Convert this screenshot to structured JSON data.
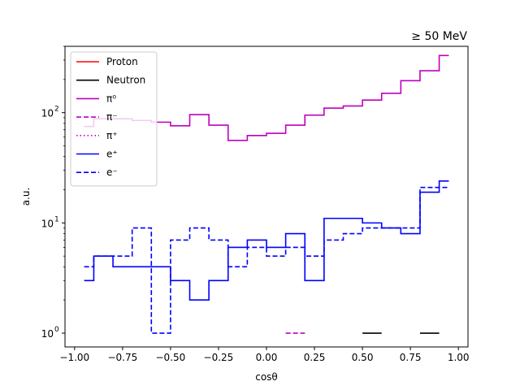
{
  "chart_data": {
    "type": "line",
    "step": true,
    "title": "",
    "corner_title": "≥ 50 MeV",
    "xlabel": "cosθ",
    "ylabel": "a.u.",
    "xlim": [
      -1.05,
      1.05
    ],
    "ylim": [
      0.75,
      400
    ],
    "yscale": "log",
    "grid": false,
    "legend_position": "upper-left",
    "x_ticks": [
      -1.0,
      -0.75,
      -0.5,
      -0.25,
      0.0,
      0.25,
      0.5,
      0.75,
      1.0
    ],
    "x_tick_labels": [
      "−1.00",
      "−0.75",
      "−0.50",
      "−0.25",
      "0.00",
      "0.25",
      "0.50",
      "0.75",
      "1.00"
    ],
    "y_ticks": [
      1,
      10,
      100
    ],
    "y_tick_labels": [
      "10",
      "10",
      "10"
    ],
    "y_tick_exponents": [
      "0",
      "1",
      "2"
    ],
    "bin_edges": [
      -0.95,
      -0.9,
      -0.8,
      -0.7,
      -0.6,
      -0.5,
      -0.4,
      -0.3,
      -0.2,
      -0.1,
      0.0,
      0.1,
      0.2,
      0.3,
      0.4,
      0.5,
      0.6,
      0.7,
      0.8,
      0.9,
      0.95
    ],
    "series": [
      {
        "name": "Proton",
        "color": "#ff0000",
        "dash": "solid",
        "values": [
          0,
          0,
          0,
          0,
          0,
          0,
          0,
          0,
          0,
          0,
          0,
          0,
          0,
          0,
          0,
          0,
          0,
          0,
          0,
          0
        ]
      },
      {
        "name": "Neutron",
        "color": "#000000",
        "dash": "solid",
        "values": [
          0,
          0,
          0,
          0,
          0,
          0,
          0,
          0,
          0,
          0,
          0,
          0,
          0,
          0,
          0,
          1,
          0,
          0,
          1,
          0
        ]
      },
      {
        "name": "π⁰",
        "color": "#bf00bf",
        "dash": "solid",
        "values": [
          75,
          88,
          88,
          85,
          82,
          76,
          96,
          77,
          56,
          62,
          65,
          77,
          95,
          110,
          115,
          130,
          150,
          195,
          240,
          330
        ]
      },
      {
        "name": "π⁻",
        "color": "#bf00bf",
        "dash": "dashed",
        "values": [
          0,
          0,
          0,
          0,
          0,
          0,
          0,
          0,
          0,
          0,
          0,
          1,
          0,
          0,
          0,
          0,
          0,
          0,
          0,
          0
        ]
      },
      {
        "name": "π⁺",
        "color": "#bf00bf",
        "dash": "dotted",
        "values": [
          0,
          0,
          0,
          0,
          0,
          0,
          0,
          0,
          0,
          0,
          0,
          0,
          0,
          0,
          0,
          0,
          0,
          0,
          0,
          0
        ]
      },
      {
        "name": "e⁺",
        "color": "#0000ff",
        "dash": "solid",
        "values": [
          3,
          5,
          4,
          4,
          4,
          3,
          2,
          3,
          6,
          7,
          6,
          8,
          3,
          11,
          11,
          10,
          9,
          8,
          19,
          24
        ]
      },
      {
        "name": "e⁻",
        "color": "#0000ff",
        "dash": "dashed",
        "values": [
          4,
          5,
          5,
          9,
          1,
          7,
          9,
          7,
          4,
          6,
          5,
          6,
          5,
          7,
          8,
          9,
          9,
          9,
          21,
          21
        ]
      }
    ]
  }
}
